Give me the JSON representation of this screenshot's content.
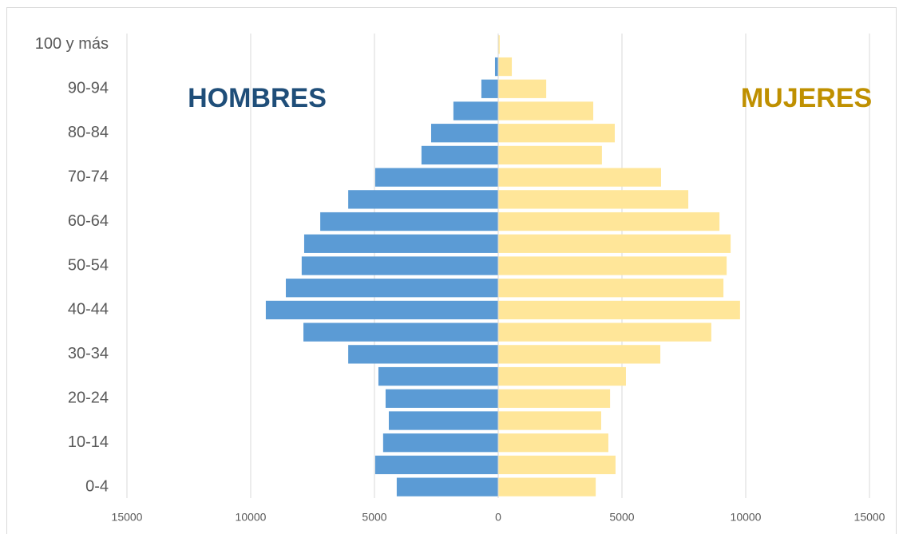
{
  "chart_data": {
    "type": "bar",
    "orientation": "horizontal",
    "categories": [
      "0-4",
      null,
      "10-14",
      null,
      "20-24",
      null,
      "30-34",
      null,
      "40-44",
      null,
      "50-54",
      null,
      "60-64",
      null,
      "70-74",
      null,
      "80-84",
      null,
      "90-94",
      null,
      "100 y más"
    ],
    "series": [
      {
        "color": "#5b9bd5",
        "values": [
          -4100,
          -4970,
          -4650,
          -4420,
          -4550,
          -4840,
          -6060,
          -7870,
          -9390,
          -8580,
          -7940,
          -7840,
          -7190,
          -6060,
          -4970,
          -3100,
          -2710,
          -1810,
          -680,
          -130,
          -10
        ]
      },
      {
        "color": "#ffe699",
        "values": [
          3940,
          4740,
          4450,
          4160,
          4520,
          5160,
          6550,
          8610,
          9770,
          9100,
          9230,
          9390,
          8940,
          7680,
          6580,
          4190,
          4710,
          3840,
          1940,
          550,
          60
        ]
      }
    ],
    "xlim": [
      -15000,
      15000
    ],
    "xticks": [
      {
        "value": -15000,
        "label": "15000"
      },
      {
        "value": -10000,
        "label": "10000"
      },
      {
        "value": -5000,
        "label": "5000"
      },
      0,
      5000,
      10000,
      15000
    ],
    "grid": true,
    "annotations": [
      {
        "text": "HOMBRES",
        "color": "#1f4e79"
      },
      {
        "text": "MUJERES",
        "color": "#bf9000"
      }
    ]
  }
}
